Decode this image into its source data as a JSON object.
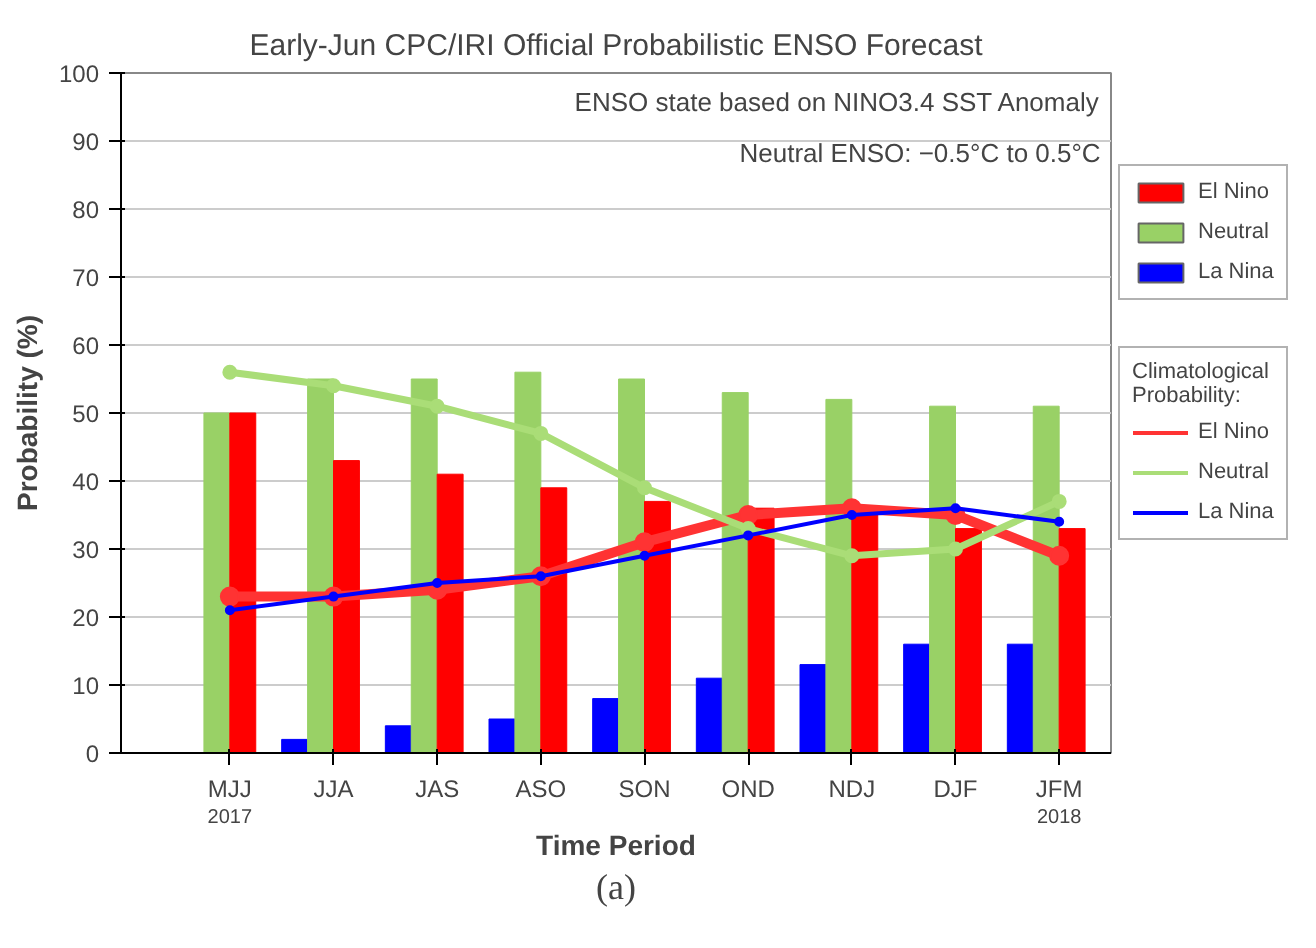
{
  "chart_data": {
    "type": "bar",
    "title": "Early-Jun CPC/IRI Official Probabilistic ENSO Forecast",
    "xlabel": "Time Period",
    "ylabel": "Probability (%)",
    "legend_title": "Climatological Probability:",
    "categories": [
      "MJJ",
      "JJA",
      "JAS",
      "ASO",
      "SON",
      "OND",
      "NDJ",
      "DJF",
      "JFM"
    ],
    "series": [
      {
        "name": "La Nina",
        "color": "#0000ff",
        "values": [
          0,
          2,
          4,
          5,
          8,
          11,
          13,
          16,
          16
        ]
      },
      {
        "name": "Neutral",
        "color": "#99d166",
        "values": [
          50,
          55,
          55,
          56,
          55,
          53,
          52,
          51,
          51
        ]
      },
      {
        "name": "El Nino",
        "color": "#ff0000",
        "values": [
          50,
          43,
          41,
          39,
          37,
          36,
          35,
          33,
          33
        ]
      },
      {
        "name": "El Nino",
        "type": "line",
        "marker": "circle",
        "color": "#ff3333",
        "values": [
          23,
          23,
          24,
          26,
          31,
          35,
          36,
          35,
          29
        ]
      },
      {
        "name": "Neutral",
        "type": "line",
        "marker": "circle",
        "color": "#aadd77",
        "values": [
          56,
          54,
          51,
          47,
          39,
          33,
          29,
          30,
          37
        ]
      },
      {
        "name": "La Nina",
        "type": "line",
        "marker": "circle",
        "color": "#0000ff",
        "values": [
          21,
          23,
          25,
          26,
          29,
          32,
          35,
          36,
          34
        ]
      }
    ],
    "ylim": [
      0,
      100
    ],
    "yticks": [
      0,
      10,
      20,
      30,
      40,
      50,
      60,
      70,
      80,
      90,
      100
    ],
    "grid": "y",
    "legend": "right",
    "annotations": [
      "2017",
      "2018",
      "(a)",
      "ENSO state based on NINO3.4 SST Anomaly",
      "Neutral ENSO: −0.5°C to 0.5°C"
    ]
  }
}
